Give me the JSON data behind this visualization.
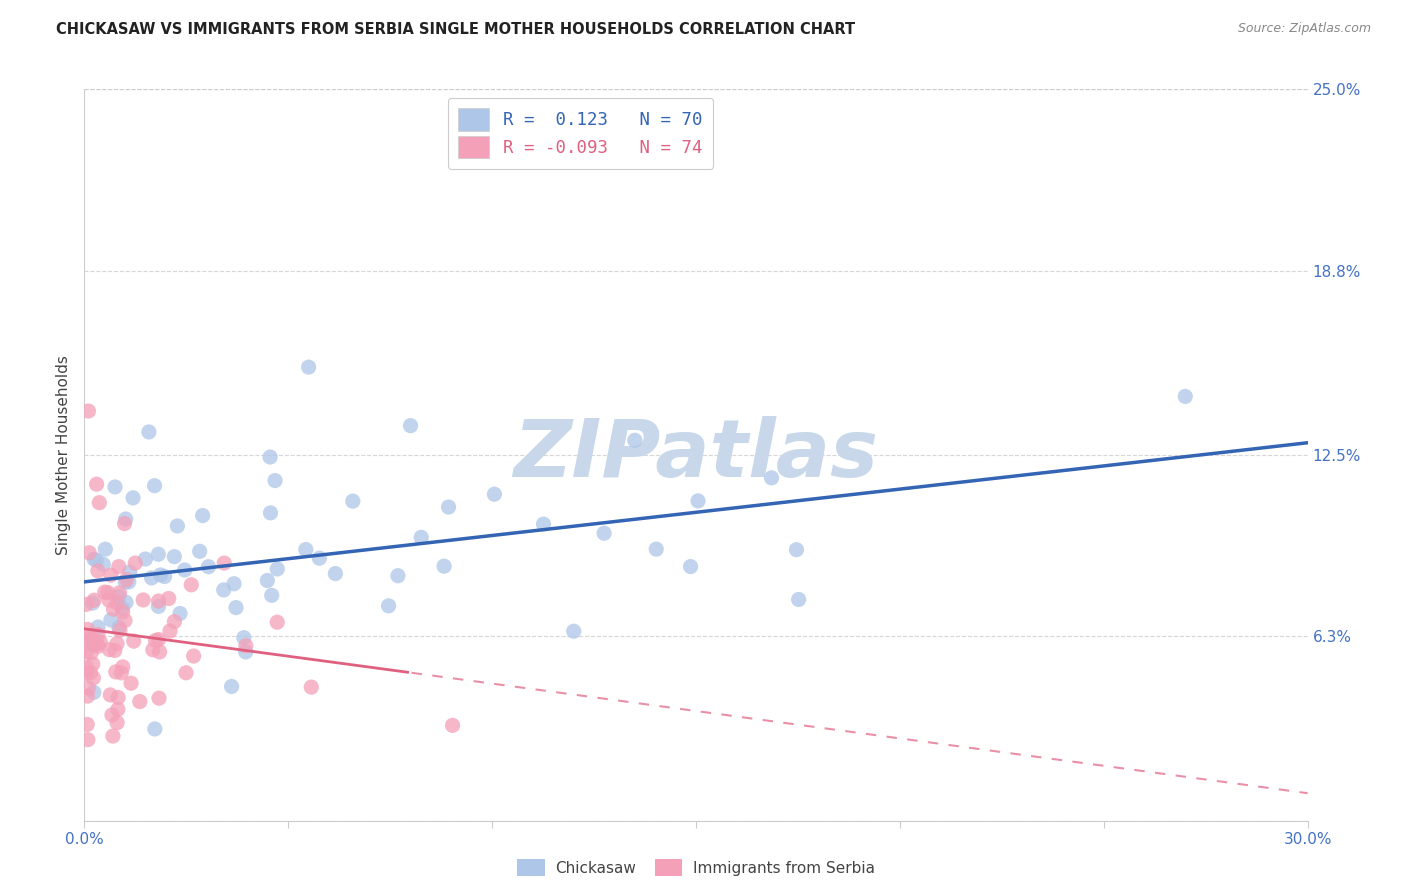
{
  "title": "CHICKASAW VS IMMIGRANTS FROM SERBIA SINGLE MOTHER HOUSEHOLDS CORRELATION CHART",
  "source": "Source: ZipAtlas.com",
  "ylabel": "Single Mother Households",
  "xlim": [
    0.0,
    0.3
  ],
  "ylim": [
    0.0,
    0.25
  ],
  "ytick_values": [
    0.0,
    0.063,
    0.125,
    0.188,
    0.25
  ],
  "ytick_labels_right": [
    "",
    "6.3%",
    "12.5%",
    "18.8%",
    "25.0%"
  ],
  "xtick_values": [
    0.0,
    0.05,
    0.1,
    0.15,
    0.2,
    0.25,
    0.3
  ],
  "xtick_labels": [
    "0.0%",
    "",
    "",
    "",
    "",
    "",
    "30.0%"
  ],
  "chickasaw_R": 0.123,
  "chickasaw_N": 70,
  "serbia_R": -0.093,
  "serbia_N": 74,
  "chickasaw_color": "#aec6e8",
  "serbia_color": "#f4a0b8",
  "chickasaw_line_color": "#3464b4",
  "serbia_line_color": "#e06080",
  "watermark_text": "ZIPatlas",
  "watermark_color": "#c8d8ea",
  "background_color": "#ffffff",
  "grid_color": "#cccccc",
  "title_color": "#222222",
  "source_color": "#888888",
  "ylabel_color": "#444444",
  "tick_color": "#4472c4",
  "legend_text_blue": "R =  0.123   N = 70",
  "legend_text_pink": "R = -0.093   N = 74",
  "bottom_legend_labels": [
    "Chickasaw",
    "Immigrants from Serbia"
  ]
}
